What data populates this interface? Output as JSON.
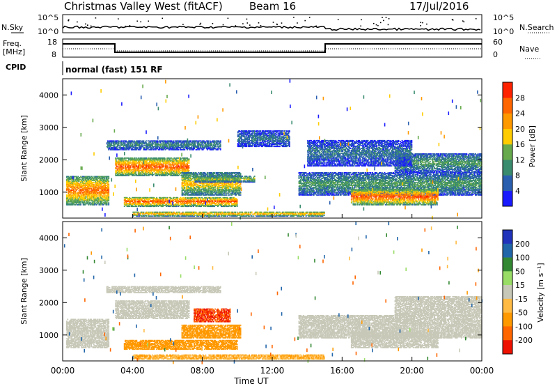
{
  "header": {
    "station": "Christmas Valley West (fitACF)",
    "beam": "Beam 16",
    "date": "17/Jul/2016"
  },
  "nsky_panel": {
    "left_label": "N.Sky",
    "right_label": "N.Search",
    "left_ticks": [
      "10^5",
      "10^0"
    ],
    "right_ticks": [
      "10^5",
      "10^0"
    ]
  },
  "freq_panel": {
    "left_label_line1": "Freq.",
    "left_label_line2": "[MHz]",
    "right_label": "Nave",
    "left_ticks": [
      "18",
      "8"
    ],
    "right_ticks": [
      "60",
      "0"
    ]
  },
  "cpid": {
    "label": "CPID",
    "value": "normal (fast) 151 RF"
  },
  "colors": {
    "power_scale": [
      "#1a1aff",
      "#2a5fb0",
      "#3a8c6e",
      "#66aa4d",
      "#ffcc00",
      "#ff9900",
      "#ff6600",
      "#ff2200"
    ],
    "velocity_scale": [
      "#ee1100",
      "#ff6600",
      "#ff9900",
      "#ffbb44",
      "#c8c8b8",
      "#99dd66",
      "#338833",
      "#2266aa",
      "#2233bb"
    ]
  },
  "chart_data": [
    {
      "type": "heatmap",
      "panel": "power",
      "ylabel": "Slant Range [km]",
      "yticks": [
        "1000",
        "2000",
        "3000",
        "4000"
      ],
      "ylim": [
        200,
        4500
      ],
      "xlim": [
        "00:00",
        "24:00"
      ],
      "colorbar": {
        "label": "Power [dB]",
        "ticks": [
          "4",
          "8",
          "12",
          "16",
          "20",
          "24",
          "28"
        ],
        "range": [
          0,
          32
        ]
      },
      "regions": [
        {
          "t0": 0.2,
          "t1": 2.6,
          "r0": 600,
          "r1": 1500,
          "level": 26
        },
        {
          "t0": 3.0,
          "t1": 7.2,
          "r0": 1500,
          "r1": 2050,
          "level": 28
        },
        {
          "t0": 3.5,
          "t1": 10.0,
          "r0": 550,
          "r1": 850,
          "level": 28
        },
        {
          "t0": 6.8,
          "t1": 10.2,
          "r0": 900,
          "r1": 1600,
          "level": 20
        },
        {
          "t0": 7.5,
          "t1": 11.0,
          "r0": 1300,
          "r1": 1500,
          "level": 16
        },
        {
          "t0": 13.5,
          "t1": 24.0,
          "r0": 900,
          "r1": 1600,
          "level": 12
        },
        {
          "t0": 16.5,
          "t1": 21.5,
          "r0": 600,
          "r1": 1100,
          "level": 28
        },
        {
          "t0": 19.0,
          "t1": 24.0,
          "r0": 1600,
          "r1": 2200,
          "level": 12
        },
        {
          "t0": 14.0,
          "t1": 20.0,
          "r0": 1800,
          "r1": 2600,
          "level": 8
        },
        {
          "t0": 4.0,
          "t1": 15.0,
          "r0": 250,
          "r1": 400,
          "level": 22
        },
        {
          "t0": 2.5,
          "t1": 9.0,
          "r0": 2300,
          "r1": 2600,
          "level": 10
        },
        {
          "t0": 10.0,
          "t1": 13.0,
          "r0": 2400,
          "r1": 2900,
          "level": 8
        }
      ]
    },
    {
      "type": "heatmap",
      "panel": "velocity",
      "ylabel": "Slant Range [km]",
      "xlabel": "Time UT",
      "yticks": [
        "1000",
        "2000",
        "3000",
        "4000"
      ],
      "xticks": [
        "00:00",
        "04:00",
        "08:00",
        "12:00",
        "16:00",
        "20:00",
        "00:00"
      ],
      "ylim": [
        200,
        4500
      ],
      "xlim": [
        "00:00",
        "24:00"
      ],
      "colorbar": {
        "label": "Velocity [m s⁻¹]",
        "ticks": [
          "200",
          "100",
          "50",
          "15",
          "-15",
          "-50",
          "-100",
          "-200"
        ],
        "range": [
          -250,
          250
        ]
      },
      "regions": [
        {
          "t0": 0.2,
          "t1": 2.6,
          "r0": 600,
          "r1": 1500,
          "level": 0
        },
        {
          "t0": 3.0,
          "t1": 7.2,
          "r0": 1500,
          "r1": 2050,
          "level": 0
        },
        {
          "t0": 3.5,
          "t1": 10.0,
          "r0": 550,
          "r1": 850,
          "level": -60
        },
        {
          "t0": 6.8,
          "t1": 10.2,
          "r0": 900,
          "r1": 1300,
          "level": -80
        },
        {
          "t0": 7.5,
          "t1": 9.6,
          "r0": 1400,
          "r1": 1800,
          "level": -200
        },
        {
          "t0": 13.5,
          "t1": 24.0,
          "r0": 900,
          "r1": 1600,
          "level": 0
        },
        {
          "t0": 16.5,
          "t1": 21.5,
          "r0": 600,
          "r1": 1100,
          "level": 0
        },
        {
          "t0": 19.0,
          "t1": 24.0,
          "r0": 1600,
          "r1": 2200,
          "level": 0
        },
        {
          "t0": 4.0,
          "t1": 15.0,
          "r0": 250,
          "r1": 400,
          "level": -50
        },
        {
          "t0": 2.5,
          "t1": 9.0,
          "r0": 2300,
          "r1": 2500,
          "level": 0
        }
      ]
    }
  ]
}
